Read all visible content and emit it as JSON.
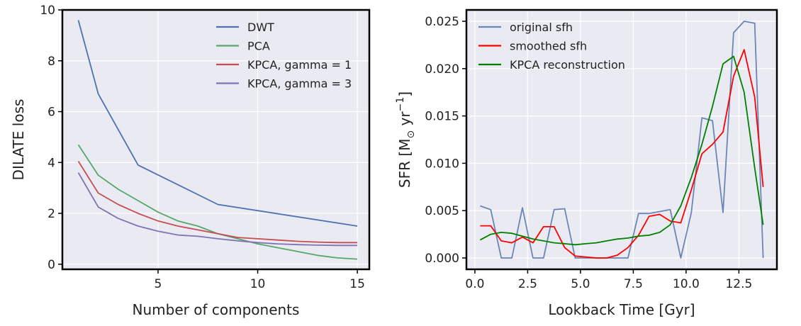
{
  "chart_data": [
    {
      "type": "line",
      "xlabel": "Number of components",
      "ylabel": "DILATE loss",
      "xlim": [
        0.2,
        15.6
      ],
      "ylim": [
        -0.2,
        10.0
      ],
      "xticks": [
        5,
        10,
        15
      ],
      "xtick_labels": [
        "5",
        "10",
        "15"
      ],
      "yticks": [
        0,
        2,
        4,
        6,
        8,
        10
      ],
      "ytick_labels": [
        "0",
        "2",
        "4",
        "6",
        "8",
        "10"
      ],
      "legend_position": "top-right",
      "series": [
        {
          "name": "DWT",
          "color": "#4c72b0",
          "x": [
            1,
            2,
            4,
            8,
            15
          ],
          "y": [
            9.6,
            6.7,
            3.9,
            2.35,
            1.5
          ]
        },
        {
          "name": "PCA",
          "color": "#55a868",
          "x": [
            1,
            2,
            3,
            4,
            5,
            6,
            7,
            8,
            9,
            10,
            11,
            12,
            13,
            14,
            15
          ],
          "y": [
            4.7,
            3.5,
            2.95,
            2.5,
            2.05,
            1.7,
            1.5,
            1.2,
            1.0,
            0.8,
            0.65,
            0.5,
            0.35,
            0.25,
            0.2
          ]
        },
        {
          "name": "KPCA, gamma = 1",
          "color": "#c44e52",
          "x": [
            1,
            2,
            3,
            4,
            5,
            6,
            7,
            8,
            9,
            10,
            11,
            12,
            13,
            14,
            15
          ],
          "y": [
            4.05,
            2.8,
            2.35,
            2.0,
            1.7,
            1.5,
            1.35,
            1.2,
            1.05,
            1.0,
            0.95,
            0.9,
            0.87,
            0.85,
            0.85
          ]
        },
        {
          "name": "KPCA, gamma = 3",
          "color": "#8172b3",
          "x": [
            1,
            2,
            3,
            4,
            5,
            6,
            7,
            8,
            9,
            10,
            11,
            12,
            13,
            14,
            15
          ],
          "y": [
            3.6,
            2.25,
            1.8,
            1.5,
            1.3,
            1.15,
            1.1,
            1.0,
            0.92,
            0.85,
            0.8,
            0.77,
            0.75,
            0.74,
            0.74
          ]
        }
      ]
    },
    {
      "type": "line",
      "xlabel": "Lookback Time [Gyr]",
      "ylabel_main": "SFR [M",
      "ylabel_sub": "⊙",
      "ylabel_rest": " yr",
      "ylabel_sup": "−1",
      "ylabel_close": "]",
      "xlim": [
        -0.4,
        14.3
      ],
      "ylim": [
        -0.0012,
        0.0262
      ],
      "xticks": [
        0,
        2.5,
        5,
        7.5,
        10,
        12.5
      ],
      "xtick_labels": [
        "0.0",
        "2.5",
        "5.0",
        "7.5",
        "10.0",
        "12.5"
      ],
      "yticks": [
        0,
        0.005,
        0.01,
        0.015,
        0.02,
        0.025
      ],
      "ytick_labels": [
        "0.000",
        "0.005",
        "0.010",
        "0.015",
        "0.020",
        "0.025"
      ],
      "legend_position": "top-left",
      "series": [
        {
          "name": "original sfh",
          "color": "#6b86b5",
          "x": [
            0.25,
            0.75,
            1.25,
            1.75,
            2.25,
            2.75,
            3.25,
            3.75,
            4.25,
            4.75,
            5.25,
            5.75,
            6.25,
            6.75,
            7.25,
            7.75,
            8.25,
            8.75,
            9.25,
            9.75,
            10.25,
            10.75,
            11.25,
            11.75,
            12.25,
            12.75,
            13.25,
            13.65
          ],
          "y": [
            0.0055,
            0.0051,
            0.0,
            0.0,
            0.0053,
            0.0,
            0.0,
            0.0051,
            0.0052,
            0.0,
            0.0,
            0.0,
            0.0,
            0.0,
            0.0,
            0.0047,
            0.0047,
            0.0049,
            0.0051,
            0.0,
            0.0048,
            0.0148,
            0.0145,
            0.0048,
            0.0238,
            0.025,
            0.0248,
            0.0
          ]
        },
        {
          "name": "smoothed sfh",
          "color": "#ff0000",
          "x": [
            0.25,
            0.75,
            1.25,
            1.75,
            2.25,
            2.75,
            3.25,
            3.75,
            4.25,
            4.75,
            5.25,
            5.75,
            6.25,
            6.75,
            7.25,
            7.75,
            8.25,
            8.75,
            9.25,
            9.75,
            10.25,
            10.75,
            11.25,
            11.75,
            12.25,
            12.75,
            13.25,
            13.65
          ],
          "y": [
            0.0034,
            0.0034,
            0.0018,
            0.0016,
            0.0022,
            0.0016,
            0.0033,
            0.0033,
            0.0011,
            0.0002,
            0.0001,
            0.0,
            0.0,
            0.0003,
            0.0011,
            0.0024,
            0.0044,
            0.0046,
            0.0039,
            0.0037,
            0.0072,
            0.011,
            0.012,
            0.0133,
            0.0192,
            0.022,
            0.017,
            0.0075
          ]
        },
        {
          "name": "KPCA reconstruction",
          "color": "#008000",
          "x": [
            0.25,
            0.75,
            1.25,
            1.75,
            2.25,
            2.75,
            3.25,
            3.75,
            4.25,
            4.75,
            5.25,
            5.75,
            6.25,
            6.75,
            7.25,
            7.75,
            8.25,
            8.75,
            9.25,
            9.75,
            10.25,
            10.75,
            11.25,
            11.75,
            12.25,
            12.75,
            13.25,
            13.65
          ],
          "y": [
            0.0019,
            0.0025,
            0.0027,
            0.0026,
            0.0023,
            0.002,
            0.0018,
            0.0016,
            0.0015,
            0.0014,
            0.0015,
            0.0016,
            0.0018,
            0.002,
            0.0021,
            0.0023,
            0.0024,
            0.0027,
            0.0035,
            0.0055,
            0.0085,
            0.012,
            0.016,
            0.0205,
            0.0213,
            0.0175,
            0.0095,
            0.0035
          ]
        }
      ]
    }
  ]
}
